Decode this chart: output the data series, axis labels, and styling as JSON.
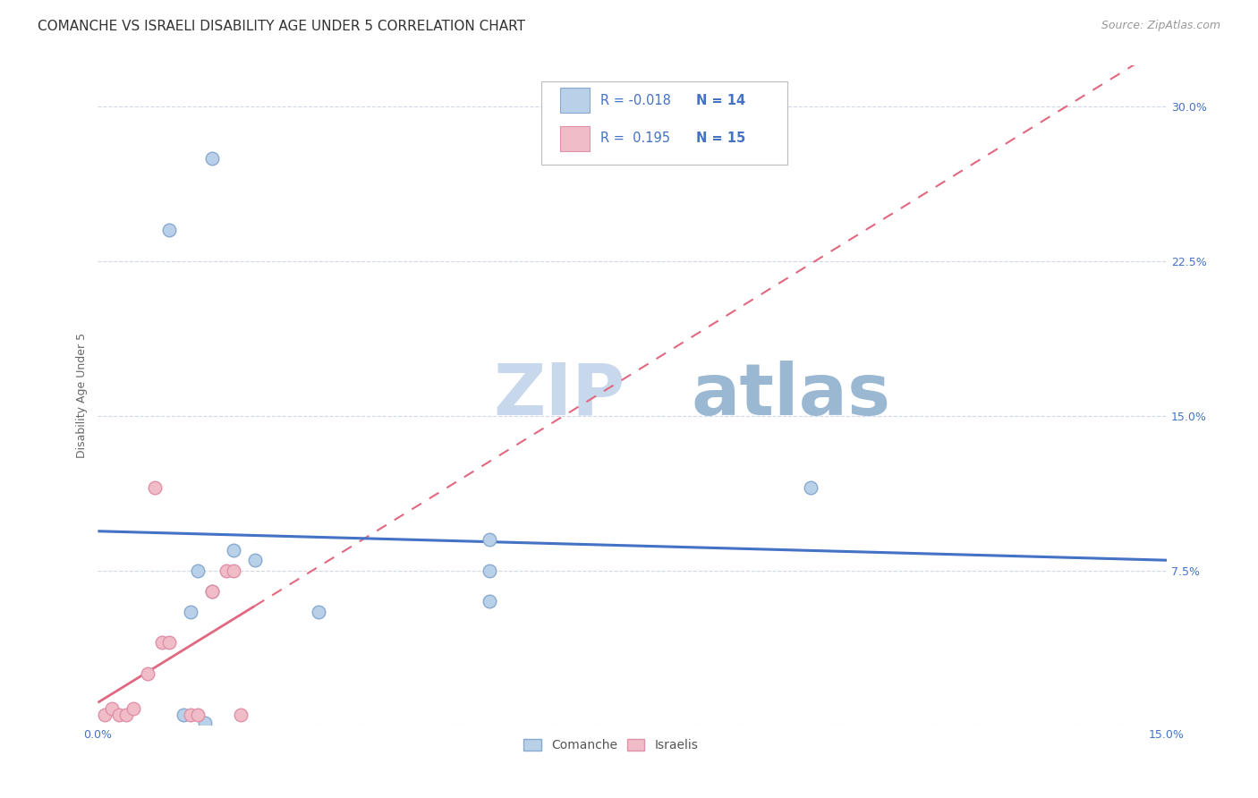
{
  "title": "COMANCHE VS ISRAELI DISABILITY AGE UNDER 5 CORRELATION CHART",
  "source": "Source: ZipAtlas.com",
  "ylabel": "Disability Age Under 5",
  "xlim": [
    0.0,
    0.15
  ],
  "ylim": [
    0.0,
    0.32
  ],
  "yticks": [
    0.0,
    0.075,
    0.15,
    0.225,
    0.3
  ],
  "ytick_labels": [
    "",
    "7.5%",
    "15.0%",
    "22.5%",
    "30.0%"
  ],
  "xticks": [
    0.0,
    0.025,
    0.05,
    0.075,
    0.1,
    0.125,
    0.15
  ],
  "xtick_labels": [
    "0.0%",
    "",
    "",
    "",
    "",
    "",
    "15.0%"
  ],
  "background_color": "#ffffff",
  "grid_color": "#d0d8e8",
  "comanche_color": "#b8d0e8",
  "israelis_color": "#f0bcc8",
  "comanche_edge_color": "#88aad0",
  "israelis_edge_color": "#e090a8",
  "trend_comanche_color": "#4472c4",
  "trend_israelis_solid_color": "#e06880",
  "trend_israelis_dash_color": "#e06880",
  "legend_color": "#4472c4",
  "watermark_zip_color": "#c8d8ec",
  "watermark_atlas_color": "#8aaccc",
  "comanche_x": [
    0.012,
    0.016,
    0.01,
    0.013,
    0.014,
    0.015,
    0.016,
    0.019,
    0.022,
    0.031,
    0.055,
    0.055,
    0.055,
    0.1
  ],
  "comanche_y": [
    0.005,
    0.275,
    0.24,
    0.055,
    0.075,
    0.001,
    0.065,
    0.085,
    0.08,
    0.055,
    0.075,
    0.09,
    0.06,
    0.115
  ],
  "israelis_x": [
    0.001,
    0.002,
    0.003,
    0.004,
    0.005,
    0.007,
    0.008,
    0.009,
    0.01,
    0.013,
    0.014,
    0.016,
    0.018,
    0.019,
    0.02
  ],
  "israelis_y": [
    0.005,
    0.008,
    0.005,
    0.005,
    0.008,
    0.025,
    0.115,
    0.04,
    0.04,
    0.005,
    0.005,
    0.065,
    0.075,
    0.075,
    0.005
  ],
  "marker_size": 110,
  "font_size_title": 11,
  "font_size_axis": 9,
  "font_size_tick": 9,
  "font_size_source": 9
}
